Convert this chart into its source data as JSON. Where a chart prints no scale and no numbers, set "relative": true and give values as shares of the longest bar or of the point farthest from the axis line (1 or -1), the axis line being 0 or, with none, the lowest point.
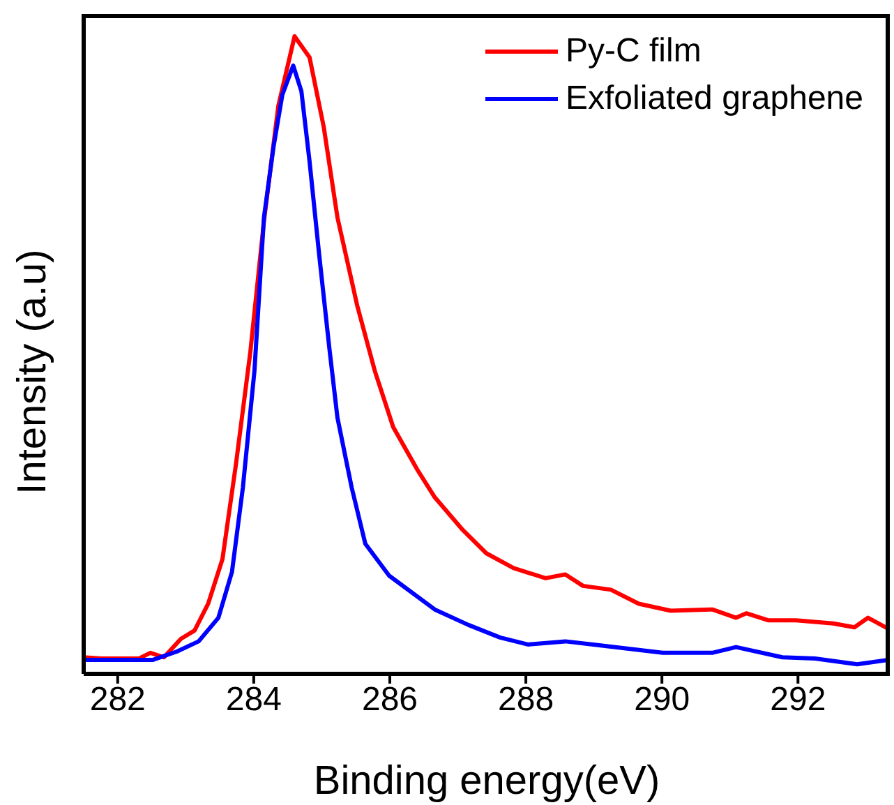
{
  "chart_data": {
    "type": "line",
    "relative": true,
    "xlabel": "Binding energy(eV)",
    "ylabel": "Intensity (a.u)",
    "xlim": [
      281.5,
      293.35
    ],
    "xticks": [
      282,
      284,
      286,
      288,
      290,
      292
    ],
    "tick_labels": "x",
    "legend": "top right",
    "marker": "none",
    "line_style": "solid",
    "series": [
      {
        "name": "Py-C film",
        "color": "#ff0000",
        "x": [
          281.5,
          281.76,
          282.31,
          282.48,
          282.68,
          282.93,
          283.13,
          283.33,
          283.54,
          283.74,
          283.95,
          284.15,
          284.36,
          284.6,
          284.82,
          285.03,
          285.23,
          285.52,
          285.78,
          286.05,
          286.4,
          286.66,
          287.07,
          287.42,
          287.82,
          288.29,
          288.58,
          288.84,
          289.25,
          289.66,
          290.13,
          290.74,
          291.09,
          291.24,
          291.56,
          291.97,
          292.52,
          292.83,
          293.03,
          293.34
        ],
        "values": [
          0.026,
          0.024,
          0.024,
          0.033,
          0.026,
          0.055,
          0.068,
          0.11,
          0.18,
          0.33,
          0.505,
          0.71,
          0.89,
          1.0,
          0.967,
          0.857,
          0.716,
          0.578,
          0.475,
          0.387,
          0.321,
          0.277,
          0.226,
          0.189,
          0.166,
          0.15,
          0.156,
          0.138,
          0.132,
          0.11,
          0.099,
          0.101,
          0.088,
          0.095,
          0.084,
          0.084,
          0.079,
          0.073,
          0.088,
          0.07
        ]
      },
      {
        "name": "Exfoliated graphene",
        "color": "#0000ff",
        "x": [
          281.5,
          282.52,
          282.87,
          283.19,
          283.48,
          283.68,
          283.84,
          284.01,
          284.15,
          284.29,
          284.42,
          284.58,
          284.7,
          284.82,
          284.96,
          285.11,
          285.23,
          285.44,
          285.64,
          285.99,
          286.66,
          287.15,
          287.62,
          288.03,
          288.58,
          288.99,
          290.01,
          290.74,
          291.09,
          291.77,
          292.25,
          292.87,
          293.34
        ],
        "values": [
          0.022,
          0.022,
          0.035,
          0.051,
          0.088,
          0.16,
          0.292,
          0.475,
          0.716,
          0.826,
          0.908,
          0.954,
          0.914,
          0.804,
          0.659,
          0.512,
          0.402,
          0.292,
          0.204,
          0.154,
          0.101,
          0.077,
          0.057,
          0.046,
          0.051,
          0.046,
          0.033,
          0.033,
          0.042,
          0.026,
          0.024,
          0.015,
          0.022
        ]
      }
    ]
  }
}
